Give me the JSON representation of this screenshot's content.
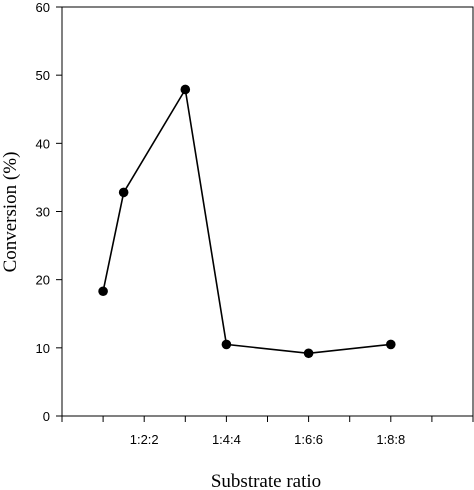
{
  "chart_data": {
    "type": "line",
    "title": "",
    "xlabel": "Substrate ratio",
    "ylabel": "Conversion (%)",
    "ylim": [
      0,
      60
    ],
    "yticks": [
      0,
      10,
      20,
      30,
      40,
      50,
      60
    ],
    "xlim": [
      0,
      10
    ],
    "xticks": [
      {
        "x": 2,
        "label": "1:2:2"
      },
      {
        "x": 4,
        "label": "1:4:4"
      },
      {
        "x": 6,
        "label": "1:6:6"
      },
      {
        "x": 8,
        "label": "1:8:8"
      }
    ],
    "grid": false,
    "series": [
      {
        "x": [
          1,
          1.5,
          3,
          4,
          6,
          8
        ],
        "values": [
          18.3,
          32.8,
          47.9,
          10.5,
          9.2,
          10.5
        ],
        "color": "#000000",
        "marker": "circle"
      }
    ]
  }
}
